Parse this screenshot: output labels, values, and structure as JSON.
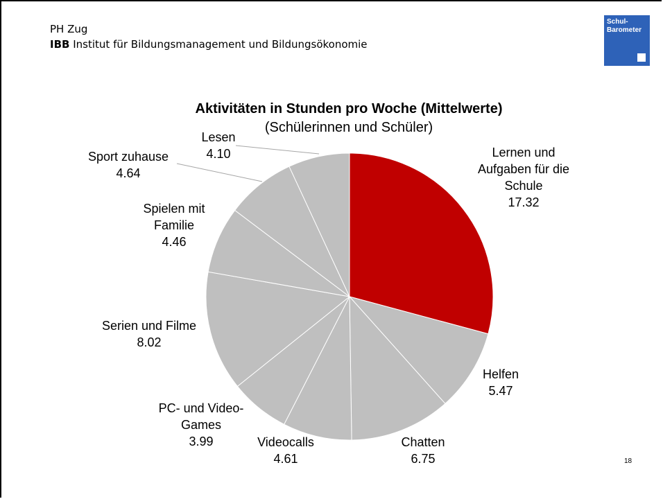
{
  "header": {
    "line1": "PH Zug",
    "org_abbr": "IBB",
    "org_name": "Institut für Bildungsmanagement und Bildungsökonomie",
    "logo": "Schul-Barometer"
  },
  "page_number": "18",
  "chart_data": {
    "type": "pie",
    "title": "Aktivitäten in Stunden pro Woche (Mittelwerte)",
    "subtitle": "(Schülerinnen und Schüler)",
    "categories": [
      "Lernen und Aufgaben für die Schule",
      "Helfen",
      "Chatten",
      "Videocalls",
      "PC- und Video-Games",
      "Serien und Filme",
      "Spielen mit Familie",
      "Sport zuhause",
      "Lesen"
    ],
    "values": [
      17.32,
      5.47,
      6.75,
      4.61,
      3.99,
      8.02,
      4.46,
      4.64,
      4.1
    ],
    "value_labels": [
      "17.32",
      "5.47",
      "6.75",
      "4.61",
      "3.99",
      "8.02",
      "4.46",
      "4.64",
      "4.10"
    ],
    "colors": [
      "#c00000",
      "#bfbfbf",
      "#bfbfbf",
      "#bfbfbf",
      "#bfbfbf",
      "#bfbfbf",
      "#bfbfbf",
      "#bfbfbf",
      "#bfbfbf"
    ]
  }
}
